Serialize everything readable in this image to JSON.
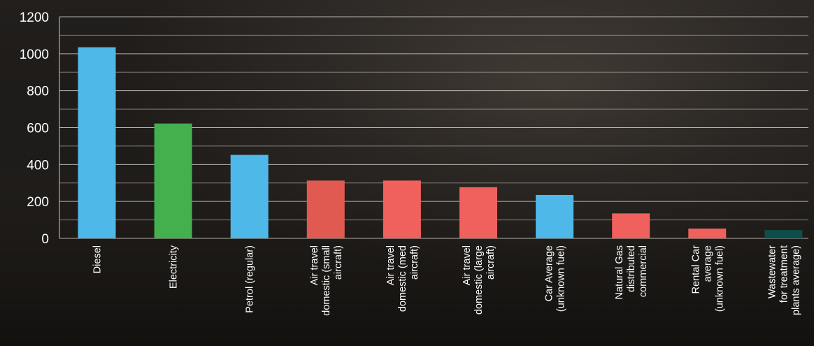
{
  "chart_data": {
    "type": "bar",
    "title": "",
    "xlabel": "",
    "ylabel": "",
    "ylim": [
      0,
      1200
    ],
    "yticks": [
      0,
      200,
      400,
      600,
      800,
      1000,
      1200
    ],
    "grid": true,
    "legend": "none",
    "categories": [
      [
        "Diesel"
      ],
      [
        "Electricity"
      ],
      [
        "Petrol (regular)"
      ],
      [
        "Air travel",
        "domestic (small",
        "aircraft)"
      ],
      [
        "Air travel",
        "domestic (med",
        "aircraft)"
      ],
      [
        "Air travel",
        "domestic (large",
        "aircraft)"
      ],
      [
        "Car Average",
        "(unknown fuel)"
      ],
      [
        "Natural Gas",
        "distributed",
        "commercial"
      ],
      [
        "Rental Car",
        "average",
        "(unknown fuel)"
      ],
      [
        "Wastewater",
        "for treatment",
        "plants average)"
      ]
    ],
    "values": [
      1035,
      622,
      452,
      313,
      313,
      277,
      235,
      135,
      53,
      45
    ],
    "colors": [
      "#4eb8e8",
      "#44b04d",
      "#4eb8e8",
      "#e05a52",
      "#f0615e",
      "#f0615e",
      "#4eb8e8",
      "#f0615e",
      "#f0615e",
      "#0d4d4a"
    ]
  }
}
